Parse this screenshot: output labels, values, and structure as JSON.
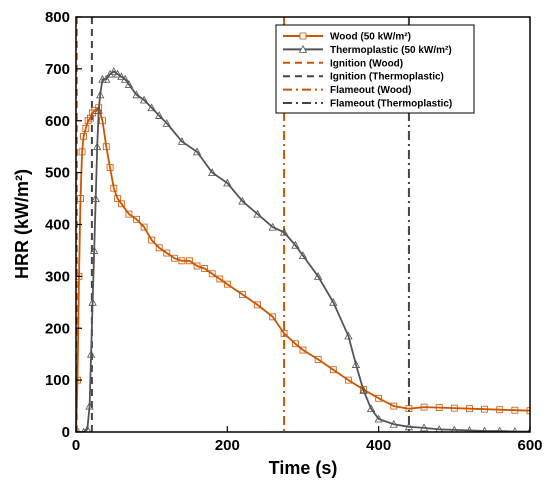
{
  "chart_data": {
    "type": "line",
    "xlabel": "Time (s)",
    "ylabel": "HRR (kW/m²)",
    "xlim": [
      0,
      600
    ],
    "ylim": [
      0,
      800
    ],
    "xticks": [
      0,
      200,
      400,
      600
    ],
    "yticks": [
      0,
      100,
      200,
      300,
      400,
      500,
      600,
      700,
      800
    ],
    "grid": false,
    "legend_position": "top-right",
    "series": [
      {
        "name": "Wood (50 kW/m²)",
        "color": "#cc5500",
        "marker": "square",
        "x": [
          0,
          2,
          4,
          6,
          8,
          10,
          13,
          16,
          19,
          22,
          25,
          30,
          35,
          40,
          45,
          50,
          55,
          60,
          70,
          80,
          90,
          100,
          110,
          120,
          130,
          140,
          150,
          160,
          170,
          180,
          190,
          200,
          220,
          240,
          260,
          275,
          290,
          300,
          320,
          340,
          360,
          380,
          400,
          420,
          440,
          460,
          480,
          500,
          520,
          540,
          560,
          580,
          600
        ],
        "y": [
          0,
          100,
          300,
          450,
          540,
          570,
          585,
          600,
          605,
          615,
          620,
          625,
          600,
          550,
          510,
          470,
          450,
          440,
          420,
          410,
          395,
          370,
          355,
          345,
          335,
          330,
          330,
          320,
          315,
          305,
          295,
          285,
          265,
          245,
          222,
          190,
          170,
          158,
          140,
          120,
          100,
          82,
          65,
          50,
          45,
          48,
          47,
          46,
          45,
          44,
          43,
          42,
          41
        ]
      },
      {
        "name": "Thermoplastic (50 kW/m²)",
        "color": "#555555",
        "marker": "triangle",
        "x": [
          0,
          10,
          15,
          18,
          20,
          22,
          24,
          26,
          28,
          30,
          32,
          35,
          40,
          45,
          50,
          55,
          60,
          65,
          70,
          80,
          90,
          100,
          110,
          120,
          140,
          160,
          180,
          200,
          220,
          240,
          260,
          275,
          290,
          300,
          320,
          340,
          360,
          370,
          380,
          390,
          400,
          420,
          440,
          460,
          480,
          500,
          520,
          540,
          560,
          580,
          600
        ],
        "y": [
          0,
          0,
          5,
          50,
          150,
          250,
          350,
          450,
          550,
          620,
          650,
          680,
          680,
          690,
          695,
          690,
          685,
          680,
          670,
          650,
          640,
          625,
          610,
          595,
          560,
          540,
          500,
          480,
          445,
          420,
          395,
          385,
          360,
          340,
          300,
          250,
          185,
          130,
          80,
          45,
          25,
          15,
          10,
          8,
          5,
          4,
          3,
          2,
          2,
          1,
          1
        ]
      }
    ],
    "vlines": [
      {
        "name": "Ignition (Wood)",
        "x": 1,
        "color": "#cc5500",
        "style": "dashed"
      },
      {
        "name": "Ignition (Thermoplastic)",
        "x": 21,
        "color": "#444444",
        "style": "dashed"
      },
      {
        "name": "Flameout (Wood)",
        "x": 275,
        "color": "#cc5500",
        "style": "dashdot"
      },
      {
        "name": "Flameout (Thermoplastic)",
        "x": 440,
        "color": "#444444",
        "style": "dashdot"
      }
    ]
  }
}
